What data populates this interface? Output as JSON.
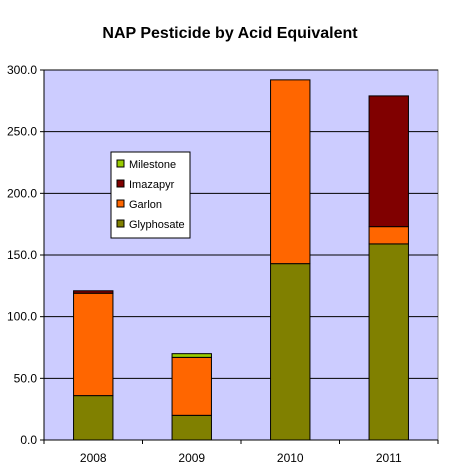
{
  "chart_data": {
    "type": "bar",
    "stacked": true,
    "title": "NAP Pesticide by Acid Equivalent",
    "xlabel": "",
    "ylabel": "",
    "categories": [
      "2008",
      "2009",
      "2010",
      "2011"
    ],
    "series": [
      {
        "name": "Glyphosate",
        "color": "#808000",
        "values": [
          36,
          20,
          143,
          159
        ]
      },
      {
        "name": "Garlon",
        "color": "#FF6600",
        "values": [
          83,
          47,
          149,
          14
        ]
      },
      {
        "name": "Imazapyr",
        "color": "#800000",
        "values": [
          2,
          0,
          0,
          106
        ]
      },
      {
        "name": "Milestone",
        "color": "#99CC00",
        "values": [
          0,
          3,
          0,
          0
        ]
      }
    ],
    "legend_order": [
      "Milestone",
      "Imazapyr",
      "Garlon",
      "Glyphosate"
    ],
    "ylim": [
      0,
      300
    ],
    "yticks": [
      0,
      50,
      100,
      150,
      200,
      250,
      300
    ],
    "ytick_labels": [
      "0.0",
      "50.0",
      "100.0",
      "150.0",
      "200.0",
      "250.0",
      "300.0"
    ],
    "grid": true,
    "legend_position": "left",
    "plot_background": "#CCCCFF"
  }
}
